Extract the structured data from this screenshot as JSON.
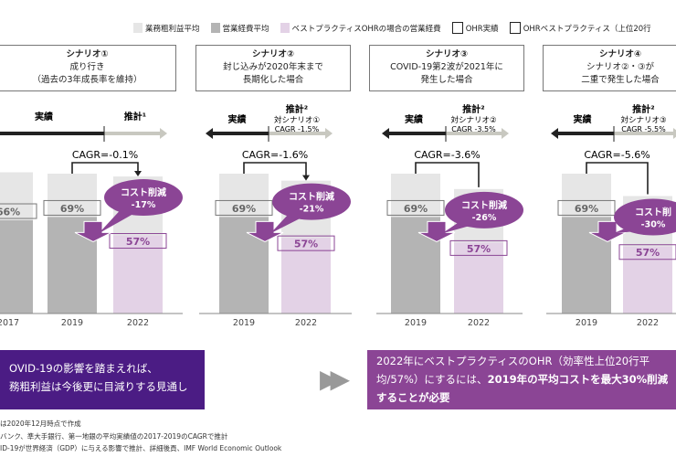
{
  "legend": [
    {
      "label": "業務粗利益平均",
      "color": "#e6e6e6",
      "type": "fill"
    },
    {
      "label": "営業経費平均",
      "color": "#b4b4b4",
      "type": "fill"
    },
    {
      "label": "ベストプラクティスOHRの場合の営業経費",
      "color": "#e3d2e6",
      "type": "fill"
    },
    {
      "label": "OHR実績",
      "color": "#888888",
      "type": "outline"
    },
    {
      "label": "OHRベストプラクティス（上位20行",
      "color": "#8b4595",
      "type": "outline"
    }
  ],
  "colors": {
    "gross": "#e6e6e6",
    "expense": "#b4b4b4",
    "best": "#e3d2e6",
    "bubble": "#8b4595",
    "dark_box": "#4b1c84",
    "light_box": "#8b4595"
  },
  "scenarios": [
    {
      "title": "シナリオ①",
      "line1": "成り行き",
      "line2": "（過去の3年成長率を維持）"
    },
    {
      "title": "シナリオ②",
      "line1": "封じ込みが2020年末まで",
      "line2": "長期化した場合"
    },
    {
      "title": "シナリオ③",
      "line1": "COVID-19第2波が2021年に",
      "line2": "発生した場合"
    },
    {
      "title": "シナリオ④",
      "line1": "シナリオ②・③が",
      "line2": "二重で発生した場合"
    }
  ],
  "chart_data": {
    "type": "bar",
    "title": "",
    "panels": [
      {
        "actual_label": "実績",
        "forecast_label": "推計¹",
        "forecast_sub1": "",
        "forecast_sub2": "",
        "cagr": "CAGR=-0.1%",
        "bubble_title": "コスト削減",
        "bubble_value": "-17%",
        "years": [
          "2017",
          "2019",
          "2022"
        ],
        "gross_profit_index": [
          101,
          100,
          98
        ],
        "ohr": [
          0.66,
          0.69,
          0.57
        ],
        "ohr_labels": [
          "66%",
          "69%",
          "57%"
        ]
      },
      {
        "actual_label": "実績",
        "forecast_label": "推計²",
        "forecast_sub1": "対シナリオ①",
        "forecast_sub2": "CAGR -1.5%",
        "cagr": "CAGR=-1.6%",
        "bubble_title": "コスト削減",
        "bubble_value": "-21%",
        "years": [
          "2019",
          "2022"
        ],
        "gross_profit_index": [
          100,
          95
        ],
        "ohr": [
          0.69,
          0.57
        ],
        "ohr_labels": [
          "69%",
          "57%"
        ]
      },
      {
        "actual_label": "実績",
        "forecast_label": "推計²",
        "forecast_sub1": "対シナリオ②",
        "forecast_sub2": "CAGR -3.5%",
        "cagr": "CAGR=-3.6%",
        "bubble_title": "コスト削減",
        "bubble_value": "-26%",
        "years": [
          "2019",
          "2022"
        ],
        "gross_profit_index": [
          100,
          89
        ],
        "ohr": [
          0.69,
          0.57
        ],
        "ohr_labels": [
          "69%",
          "57%"
        ]
      },
      {
        "actual_label": "実績",
        "forecast_label": "推計²",
        "forecast_sub1": "対シナリオ③",
        "forecast_sub2": "CAGR -5.5%",
        "cagr": "CAGR=-5.6%",
        "bubble_title": "コスト削",
        "bubble_value": "-30%",
        "years": [
          "2019",
          "2022"
        ],
        "gross_profit_index": [
          100,
          84
        ],
        "ohr": [
          0.69,
          0.57
        ],
        "ohr_labels": [
          "69%",
          "57%"
        ]
      }
    ]
  },
  "conclusion_left": {
    "line1": "OVID-19の影響を踏まえれば、",
    "line2": "務粗利益は今後更に目減りする見通し"
  },
  "conclusion_right": {
    "text1": "2022年にベストプラクティスのOHR（効率性上位20行平均/57%）にするには、",
    "bold": "2019年の平均コストを最大30%削減することが必要"
  },
  "footnotes": [
    "は2020年12月時点で作成",
    "バンク、準大手銀行、第一地銀の平均実績値の2017-2019のCAGRで推計",
    "ID-19が世界経済（GDP）に与える影響で推計、詳細後頁、IMF World Economic Outlook"
  ]
}
